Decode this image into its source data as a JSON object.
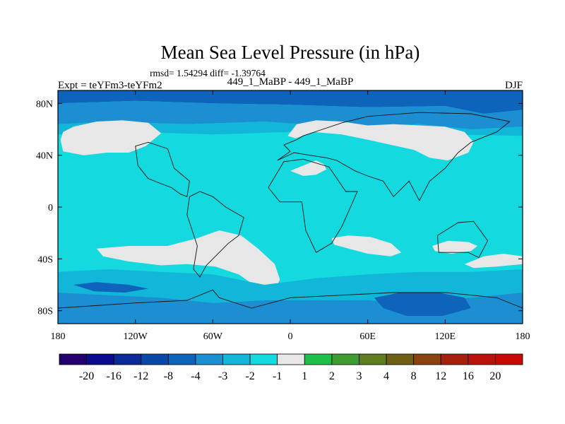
{
  "chart_data": {
    "type": "heatmap",
    "title": "Mean Sea Level Pressure (in hPa)",
    "stats": "rmsd= 1.54294 diff= -1.39764",
    "subtitle": "449_1_MaBP - 449_1_MaBP",
    "left_label": "Expt = teYFm3-teYFm2",
    "right_label": "DJF",
    "projection": "cylindrical equidistant",
    "lon_range": [
      -180,
      180
    ],
    "lat_range": [
      -90,
      90
    ],
    "x_ticks": [
      {
        "value": -180,
        "label": "180"
      },
      {
        "value": -120,
        "label": "120W"
      },
      {
        "value": -60,
        "label": "60W"
      },
      {
        "value": 0,
        "label": "0"
      },
      {
        "value": 60,
        "label": "60E"
      },
      {
        "value": 120,
        "label": "120E"
      },
      {
        "value": 180,
        "label": "180"
      }
    ],
    "y_ticks": [
      {
        "value": 80,
        "label": "80N"
      },
      {
        "value": 40,
        "label": "40N"
      },
      {
        "value": 0,
        "label": "0"
      },
      {
        "value": -40,
        "label": "40S"
      },
      {
        "value": -80,
        "label": "80S"
      }
    ],
    "colorbar": {
      "levels": [
        "-20",
        "-16",
        "-12",
        "-8",
        "-4",
        "-3",
        "-2",
        "-1",
        "1",
        "2",
        "3",
        "4",
        "8",
        "12",
        "16",
        "20"
      ],
      "colors": [
        "#23006e",
        "#0b0b8c",
        "#0a2a98",
        "#0a48a8",
        "#0e64bb",
        "#1c8fd3",
        "#12b6d9",
        "#14d9df",
        "#e7e7e7",
        "#1fc04a",
        "#3e9d2e",
        "#5e7d1e",
        "#6f5f14",
        "#8a420f",
        "#a4220c",
        "#b8120a",
        "#c80a06"
      ]
    },
    "regions": [
      {
        "name": "arctic-strong-negative",
        "class": "-8 to -4",
        "color": "#0e64bb",
        "polygon": [
          [
            -180,
            90
          ],
          [
            180,
            90
          ],
          [
            180,
            75
          ],
          [
            150,
            72
          ],
          [
            120,
            78
          ],
          [
            60,
            77
          ],
          [
            0,
            79
          ],
          [
            -60,
            80
          ],
          [
            -120,
            82
          ],
          [
            -180,
            80
          ]
        ]
      },
      {
        "name": "arctic-moderate-negative",
        "class": "-4 to -3",
        "color": "#1c8fd3",
        "polygon": [
          [
            -180,
            80
          ],
          [
            -120,
            82
          ],
          [
            -60,
            80
          ],
          [
            0,
            79
          ],
          [
            60,
            77
          ],
          [
            120,
            78
          ],
          [
            150,
            72
          ],
          [
            180,
            75
          ],
          [
            180,
            62
          ],
          [
            140,
            60
          ],
          [
            100,
            64
          ],
          [
            40,
            62
          ],
          [
            -20,
            66
          ],
          [
            -80,
            64
          ],
          [
            -140,
            66
          ],
          [
            -180,
            64
          ]
        ]
      },
      {
        "name": "arctic-weak-negative",
        "class": "-3 to -2",
        "color": "#12b6d9",
        "polygon": [
          [
            -180,
            64
          ],
          [
            -140,
            66
          ],
          [
            -80,
            64
          ],
          [
            -20,
            66
          ],
          [
            40,
            62
          ],
          [
            100,
            64
          ],
          [
            140,
            60
          ],
          [
            180,
            62
          ],
          [
            180,
            55
          ],
          [
            120,
            56
          ],
          [
            60,
            58
          ],
          [
            0,
            58
          ],
          [
            -60,
            56
          ],
          [
            -120,
            58
          ],
          [
            -180,
            56
          ]
        ]
      },
      {
        "name": "north-pacific-near-zero",
        "class": "-1 to 1",
        "color": "#e7e7e7",
        "polygon": [
          [
            -178,
            52
          ],
          [
            -176,
            58
          ],
          [
            -168,
            62
          ],
          [
            -150,
            66
          ],
          [
            -130,
            67
          ],
          [
            -110,
            65
          ],
          [
            -100,
            57
          ],
          [
            -112,
            47
          ],
          [
            -125,
            42
          ],
          [
            -142,
            42
          ],
          [
            -160,
            40
          ],
          [
            -176,
            43
          ]
        ]
      },
      {
        "name": "eurasia-near-zero",
        "class": "-1 to 1",
        "color": "#e7e7e7",
        "polygon": [
          [
            -2,
            55
          ],
          [
            5,
            64
          ],
          [
            20,
            67
          ],
          [
            40,
            66
          ],
          [
            60,
            63
          ],
          [
            80,
            64
          ],
          [
            100,
            63
          ],
          [
            120,
            62
          ],
          [
            135,
            58
          ],
          [
            142,
            50
          ],
          [
            138,
            42
          ],
          [
            122,
            36
          ],
          [
            108,
            38
          ],
          [
            96,
            44
          ],
          [
            78,
            48
          ],
          [
            60,
            52
          ],
          [
            40,
            56
          ],
          [
            18,
            58
          ],
          [
            4,
            53
          ]
        ]
      },
      {
        "name": "mediterranean-near-zero",
        "class": "-1 to 1",
        "color": "#e7e7e7",
        "polygon": [
          [
            0,
            28
          ],
          [
            10,
            32
          ],
          [
            20,
            36
          ],
          [
            26,
            33
          ],
          [
            28,
            29
          ],
          [
            20,
            25
          ],
          [
            10,
            24
          ]
        ]
      },
      {
        "name": "south-america-atlantic-near-zero",
        "class": "-1 to 1",
        "color": "#e7e7e7",
        "polygon": [
          [
            -150,
            -32
          ],
          [
            -125,
            -30
          ],
          [
            -95,
            -30
          ],
          [
            -72,
            -24
          ],
          [
            -55,
            -18
          ],
          [
            -38,
            -22
          ],
          [
            -25,
            -32
          ],
          [
            -12,
            -44
          ],
          [
            -8,
            -56
          ],
          [
            -12,
            -64
          ],
          [
            -24,
            -63
          ],
          [
            -40,
            -52
          ],
          [
            -58,
            -46
          ],
          [
            -80,
            -44
          ],
          [
            -100,
            -45
          ],
          [
            -125,
            -42
          ],
          [
            -145,
            -38
          ]
        ]
      },
      {
        "name": "indian-ocean-near-zero",
        "class": "-1 to 1",
        "color": "#e7e7e7",
        "polygon": [
          [
            32,
            -24
          ],
          [
            45,
            -22
          ],
          [
            62,
            -23
          ],
          [
            78,
            -28
          ],
          [
            86,
            -35
          ],
          [
            78,
            -38
          ],
          [
            60,
            -36
          ],
          [
            45,
            -32
          ],
          [
            34,
            -29
          ]
        ]
      },
      {
        "name": "australia-near-zero",
        "class": "-1 to 1",
        "color": "#e7e7e7",
        "polygon": [
          [
            110,
            -30
          ],
          [
            122,
            -26
          ],
          [
            138,
            -27
          ],
          [
            145,
            -30
          ],
          [
            140,
            -34
          ],
          [
            125,
            -36
          ],
          [
            112,
            -34
          ]
        ]
      },
      {
        "name": "south-pacific-near-zero",
        "class": "-1 to 1",
        "color": "#e7e7e7",
        "polygon": [
          [
            135,
            -44
          ],
          [
            150,
            -38
          ],
          [
            165,
            -36
          ],
          [
            180,
            -38
          ],
          [
            180,
            -44
          ],
          [
            160,
            -46
          ],
          [
            142,
            -47
          ]
        ]
      },
      {
        "name": "southern-ocean-weak-negative",
        "class": "-3 to -2",
        "color": "#12b6d9",
        "polygon": [
          [
            -180,
            -50
          ],
          [
            -140,
            -48
          ],
          [
            -100,
            -50
          ],
          [
            -60,
            -52
          ],
          [
            -20,
            -60
          ],
          [
            20,
            -55
          ],
          [
            60,
            -52
          ],
          [
            100,
            -50
          ],
          [
            140,
            -50
          ],
          [
            180,
            -48
          ],
          [
            180,
            -66
          ],
          [
            140,
            -70
          ],
          [
            100,
            -74
          ],
          [
            60,
            -72
          ],
          [
            20,
            -72
          ],
          [
            -20,
            -72
          ],
          [
            -60,
            -74
          ],
          [
            -100,
            -70
          ],
          [
            -140,
            -68
          ],
          [
            -180,
            -66
          ]
        ]
      },
      {
        "name": "southern-ocean-moderate-negative",
        "class": "-4 to -3",
        "color": "#1c8fd3",
        "polygon": [
          [
            -180,
            -66
          ],
          [
            -140,
            -68
          ],
          [
            -100,
            -70
          ],
          [
            -60,
            -74
          ],
          [
            -20,
            -72
          ],
          [
            20,
            -72
          ],
          [
            60,
            -72
          ],
          [
            100,
            -74
          ],
          [
            140,
            -70
          ],
          [
            180,
            -66
          ],
          [
            180,
            -90
          ],
          [
            -180,
            -90
          ]
        ]
      },
      {
        "name": "antarctic-strong-negative-west",
        "class": "-8 to -4",
        "color": "#0e64bb",
        "polygon": [
          [
            -168,
            -60
          ],
          [
            -150,
            -58
          ],
          [
            -125,
            -60
          ],
          [
            -110,
            -63
          ],
          [
            -128,
            -66
          ],
          [
            -152,
            -65
          ]
        ]
      },
      {
        "name": "antarctic-strong-negative-east",
        "class": "-8 to -4",
        "color": "#0e64bb",
        "polygon": [
          [
            65,
            -70
          ],
          [
            85,
            -66
          ],
          [
            115,
            -66
          ],
          [
            135,
            -70
          ],
          [
            140,
            -78
          ],
          [
            118,
            -84
          ],
          [
            90,
            -84
          ],
          [
            72,
            -78
          ]
        ]
      },
      {
        "name": "antarctic-weak-negative-patch",
        "class": "-3 to -2",
        "color": "#12b6d9",
        "polygon": [
          [
            -20,
            -66
          ],
          [
            0,
            -63
          ],
          [
            25,
            -64
          ],
          [
            40,
            -68
          ],
          [
            22,
            -72
          ],
          [
            -5,
            -71
          ]
        ]
      }
    ],
    "coastlines": [
      [
        [
          -95,
          45
        ],
        [
          -110,
          50
        ],
        [
          -120,
          47
        ],
        [
          -118,
          32
        ],
        [
          -110,
          22
        ],
        [
          -100,
          18
        ],
        [
          -92,
          15
        ],
        [
          -85,
          10
        ],
        [
          -80,
          8
        ],
        [
          -78,
          20
        ],
        [
          -90,
          30
        ],
        [
          -95,
          45
        ]
      ],
      [
        [
          -78,
          8
        ],
        [
          -70,
          12
        ],
        [
          -60,
          8
        ],
        [
          -50,
          0
        ],
        [
          -36,
          -8
        ],
        [
          -40,
          -22
        ],
        [
          -48,
          -28
        ],
        [
          -58,
          -38
        ],
        [
          -65,
          -45
        ],
        [
          -70,
          -54
        ],
        [
          -75,
          -48
        ],
        [
          -72,
          -30
        ],
        [
          -80,
          -6
        ],
        [
          -78,
          8
        ]
      ],
      [
        [
          -17,
          15
        ],
        [
          -5,
          35
        ],
        [
          10,
          37
        ],
        [
          30,
          31
        ],
        [
          43,
          12
        ],
        [
          52,
          12
        ],
        [
          40,
          -15
        ],
        [
          32,
          -28
        ],
        [
          20,
          -35
        ],
        [
          12,
          -18
        ],
        [
          9,
          4
        ],
        [
          -8,
          4
        ],
        [
          -17,
          15
        ]
      ],
      [
        [
          -10,
          36
        ],
        [
          0,
          43
        ],
        [
          -5,
          48
        ],
        [
          5,
          52
        ],
        [
          10,
          55
        ],
        [
          25,
          60
        ],
        [
          40,
          65
        ],
        [
          60,
          70
        ],
        [
          100,
          73
        ],
        [
          140,
          72
        ],
        [
          170,
          66
        ],
        [
          160,
          58
        ],
        [
          140,
          50
        ],
        [
          130,
          42
        ],
        [
          120,
          30
        ],
        [
          108,
          20
        ],
        [
          100,
          5
        ],
        [
          92,
          20
        ],
        [
          80,
          8
        ],
        [
          72,
          20
        ],
        [
          60,
          24
        ],
        [
          50,
          28
        ],
        [
          36,
          36
        ],
        [
          28,
          38
        ],
        [
          15,
          40
        ],
        [
          3,
          42
        ],
        [
          -10,
          36
        ]
      ],
      [
        [
          114,
          -22
        ],
        [
          130,
          -12
        ],
        [
          142,
          -11
        ],
        [
          153,
          -26
        ],
        [
          146,
          -39
        ],
        [
          138,
          -35
        ],
        [
          115,
          -35
        ],
        [
          114,
          -22
        ]
      ],
      [
        [
          -180,
          -78
        ],
        [
          -120,
          -74
        ],
        [
          -80,
          -72
        ],
        [
          -60,
          -64
        ],
        [
          -55,
          -70
        ],
        [
          -30,
          -78
        ],
        [
          0,
          -70
        ],
        [
          40,
          -68
        ],
        [
          80,
          -66
        ],
        [
          120,
          -66
        ],
        [
          160,
          -70
        ],
        [
          180,
          -78
        ]
      ]
    ]
  }
}
